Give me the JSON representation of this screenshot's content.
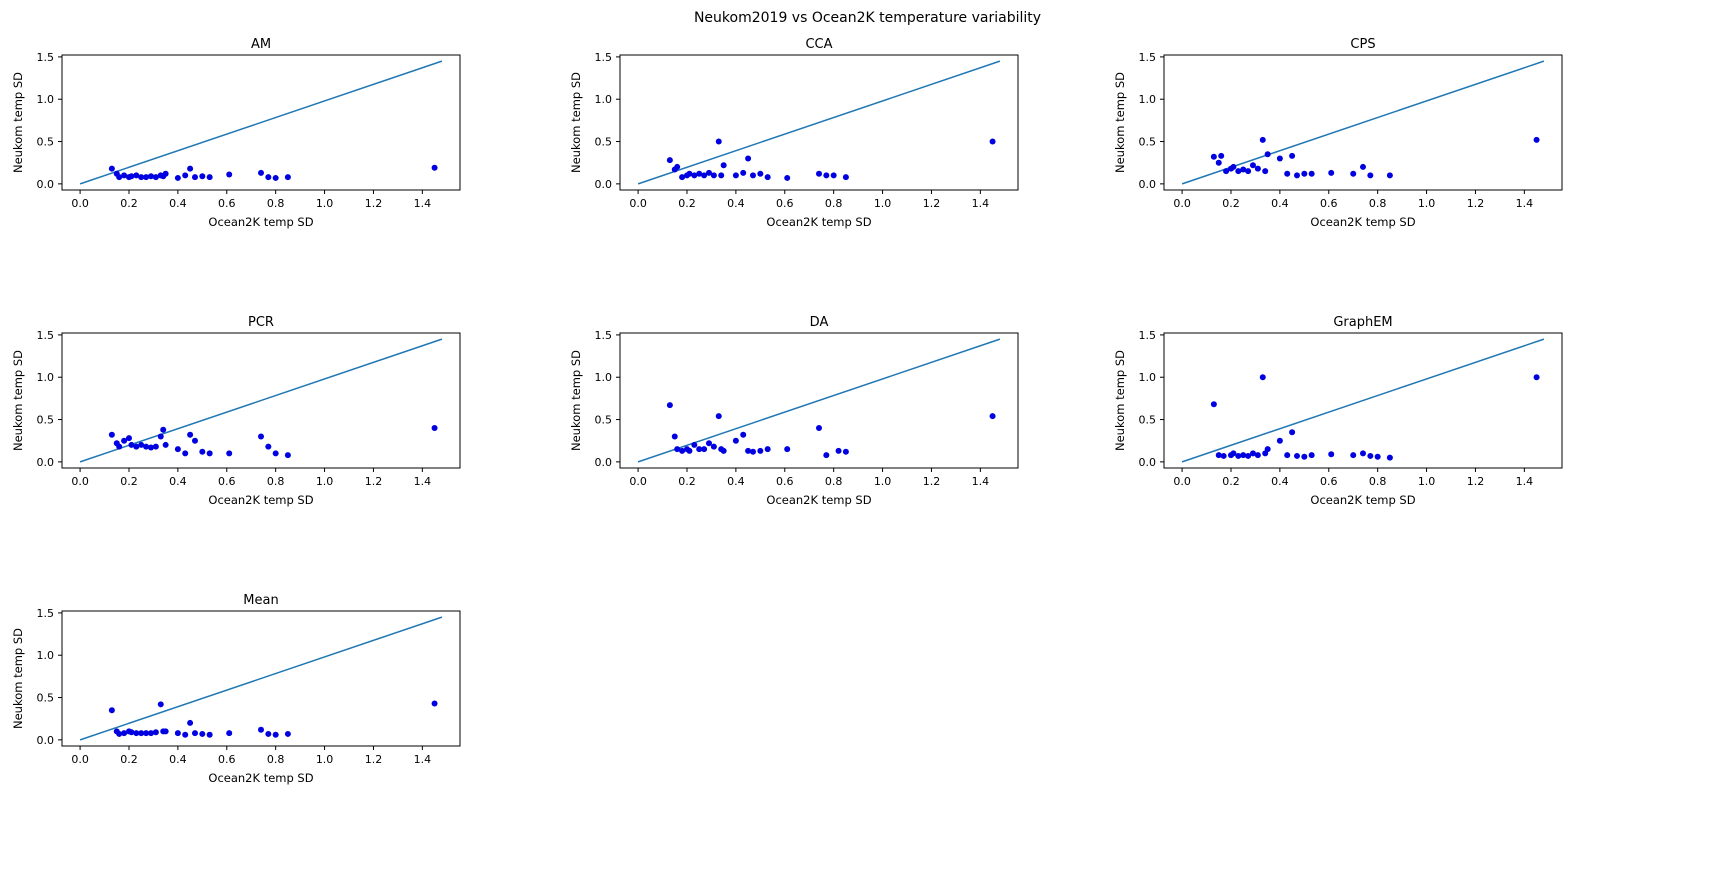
{
  "figure": {
    "title": "Neukom2019 vs Ocean2K temperature variability"
  },
  "chart_data": {
    "type": "scatter",
    "layout": "3-column grid, 7 panels (AM, CCA, CPS, PCR, DA, GraphEM, Mean)",
    "xlabel": "Ocean2K temp SD",
    "ylabel": "Neukom temp SD",
    "xlim": [
      -0.074,
      1.554
    ],
    "ylim": [
      -0.0725,
      1.5225
    ],
    "xticks": [
      0.0,
      0.2,
      0.4,
      0.6,
      0.8,
      1.0,
      1.2,
      1.4
    ],
    "yticks": [
      0.0,
      0.5,
      1.0,
      1.5
    ],
    "grid": false,
    "legend": "none",
    "line_color": "#1f77b4",
    "point_color": "#0000e0",
    "identity_line": {
      "x": [
        0,
        1.48
      ],
      "y": [
        0,
        1.45
      ]
    },
    "panels": [
      {
        "title": "AM",
        "x": [
          0.13,
          0.15,
          0.16,
          0.18,
          0.2,
          0.21,
          0.23,
          0.25,
          0.27,
          0.29,
          0.31,
          0.33,
          0.34,
          0.35,
          0.4,
          0.43,
          0.45,
          0.47,
          0.5,
          0.53,
          0.61,
          0.74,
          0.77,
          0.8,
          0.85,
          1.45
        ],
        "y": [
          0.18,
          0.12,
          0.08,
          0.1,
          0.08,
          0.09,
          0.1,
          0.08,
          0.08,
          0.09,
          0.08,
          0.1,
          0.09,
          0.12,
          0.07,
          0.1,
          0.18,
          0.08,
          0.09,
          0.08,
          0.11,
          0.13,
          0.08,
          0.07,
          0.08,
          0.19
        ]
      },
      {
        "title": "CCA",
        "x": [
          0.13,
          0.15,
          0.16,
          0.18,
          0.2,
          0.21,
          0.23,
          0.25,
          0.27,
          0.29,
          0.31,
          0.33,
          0.34,
          0.35,
          0.4,
          0.43,
          0.45,
          0.47,
          0.5,
          0.53,
          0.61,
          0.74,
          0.77,
          0.8,
          0.85,
          1.45
        ],
        "y": [
          0.28,
          0.17,
          0.2,
          0.08,
          0.1,
          0.12,
          0.1,
          0.12,
          0.1,
          0.13,
          0.1,
          0.5,
          0.1,
          0.22,
          0.1,
          0.13,
          0.3,
          0.1,
          0.12,
          0.08,
          0.07,
          0.12,
          0.1,
          0.1,
          0.08,
          0.5
        ]
      },
      {
        "title": "CPS",
        "x": [
          0.13,
          0.15,
          0.16,
          0.18,
          0.2,
          0.21,
          0.23,
          0.25,
          0.27,
          0.29,
          0.31,
          0.33,
          0.34,
          0.35,
          0.4,
          0.43,
          0.45,
          0.47,
          0.5,
          0.53,
          0.61,
          0.7,
          0.74,
          0.77,
          0.85,
          1.45
        ],
        "y": [
          0.32,
          0.25,
          0.33,
          0.15,
          0.18,
          0.2,
          0.15,
          0.17,
          0.15,
          0.22,
          0.18,
          0.52,
          0.15,
          0.35,
          0.3,
          0.12,
          0.33,
          0.1,
          0.12,
          0.12,
          0.13,
          0.12,
          0.2,
          0.1,
          0.1,
          0.52
        ]
      },
      {
        "title": "PCR",
        "x": [
          0.13,
          0.15,
          0.16,
          0.18,
          0.2,
          0.21,
          0.23,
          0.25,
          0.27,
          0.29,
          0.31,
          0.33,
          0.34,
          0.35,
          0.4,
          0.43,
          0.45,
          0.47,
          0.5,
          0.53,
          0.61,
          0.74,
          0.77,
          0.8,
          0.85,
          1.45
        ],
        "y": [
          0.32,
          0.22,
          0.18,
          0.25,
          0.28,
          0.2,
          0.18,
          0.2,
          0.18,
          0.17,
          0.18,
          0.3,
          0.38,
          0.2,
          0.15,
          0.1,
          0.32,
          0.25,
          0.12,
          0.1,
          0.1,
          0.3,
          0.18,
          0.1,
          0.08,
          0.4
        ]
      },
      {
        "title": "DA",
        "x": [
          0.13,
          0.15,
          0.16,
          0.18,
          0.2,
          0.21,
          0.23,
          0.25,
          0.27,
          0.29,
          0.31,
          0.33,
          0.34,
          0.35,
          0.4,
          0.43,
          0.45,
          0.47,
          0.5,
          0.53,
          0.61,
          0.74,
          0.77,
          0.82,
          0.85,
          1.45
        ],
        "y": [
          0.67,
          0.3,
          0.15,
          0.13,
          0.15,
          0.13,
          0.2,
          0.15,
          0.15,
          0.22,
          0.18,
          0.54,
          0.15,
          0.13,
          0.25,
          0.32,
          0.13,
          0.12,
          0.13,
          0.15,
          0.15,
          0.4,
          0.08,
          0.13,
          0.12,
          0.54
        ]
      },
      {
        "title": "GraphEM",
        "x": [
          0.13,
          0.15,
          0.17,
          0.2,
          0.21,
          0.23,
          0.25,
          0.27,
          0.29,
          0.31,
          0.33,
          0.34,
          0.35,
          0.4,
          0.43,
          0.45,
          0.47,
          0.5,
          0.53,
          0.61,
          0.7,
          0.74,
          0.77,
          0.8,
          0.85,
          1.45
        ],
        "y": [
          0.68,
          0.08,
          0.07,
          0.08,
          0.1,
          0.07,
          0.08,
          0.07,
          0.1,
          0.08,
          1.0,
          0.1,
          0.15,
          0.25,
          0.08,
          0.35,
          0.07,
          0.06,
          0.08,
          0.09,
          0.08,
          0.1,
          0.07,
          0.06,
          0.05,
          1.0
        ]
      },
      {
        "title": "Mean",
        "x": [
          0.13,
          0.15,
          0.16,
          0.18,
          0.2,
          0.21,
          0.23,
          0.25,
          0.27,
          0.29,
          0.31,
          0.33,
          0.34,
          0.35,
          0.4,
          0.43,
          0.45,
          0.47,
          0.5,
          0.53,
          0.61,
          0.74,
          0.77,
          0.8,
          0.85,
          1.45
        ],
        "y": [
          0.35,
          0.1,
          0.07,
          0.08,
          0.1,
          0.09,
          0.08,
          0.08,
          0.08,
          0.08,
          0.09,
          0.42,
          0.1,
          0.1,
          0.08,
          0.06,
          0.2,
          0.08,
          0.07,
          0.06,
          0.08,
          0.12,
          0.07,
          0.06,
          0.07,
          0.43
        ]
      }
    ]
  }
}
